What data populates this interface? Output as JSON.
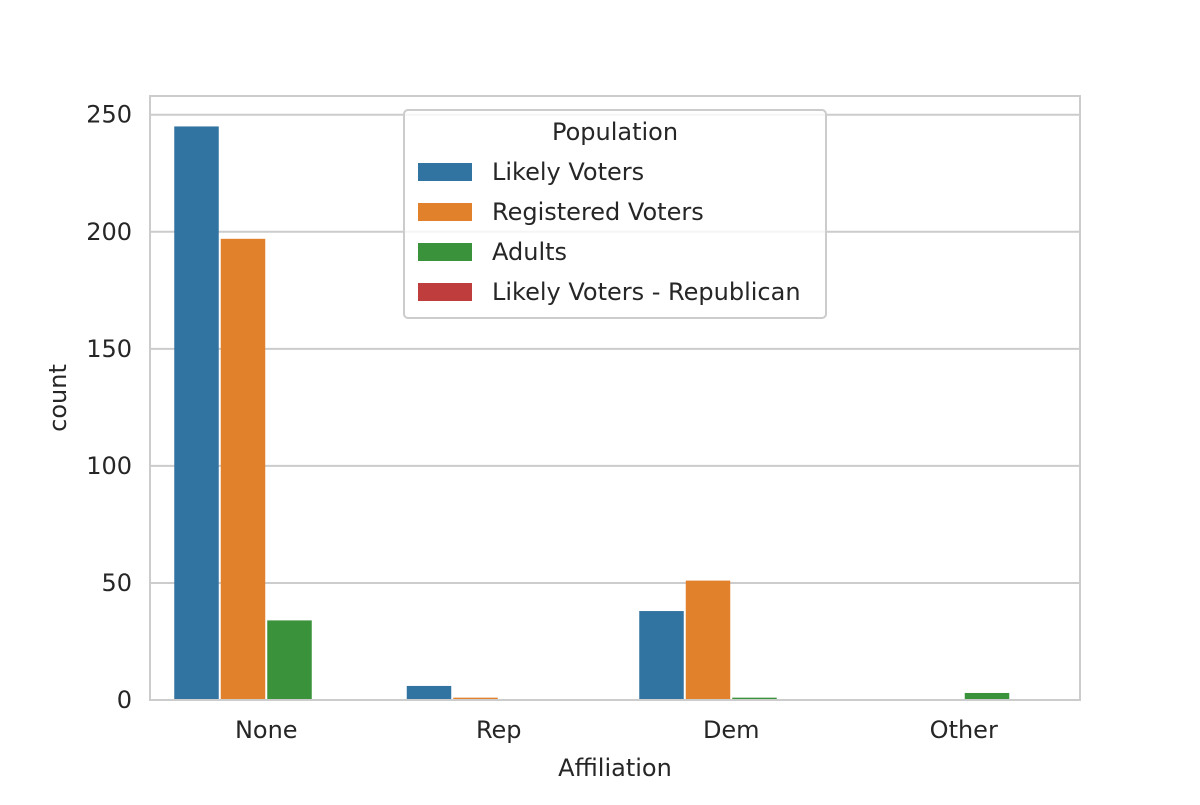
{
  "chart_data": {
    "type": "bar",
    "xlabel": "Affiliation",
    "ylabel": "count",
    "categories": [
      "None",
      "Rep",
      "Dem",
      "Other"
    ],
    "ylim": [
      0,
      258
    ],
    "yticks": [
      0,
      50,
      100,
      150,
      200,
      250
    ],
    "grid": true,
    "legend": {
      "title": "Population",
      "placement": "top-center"
    },
    "series": [
      {
        "name": "Likely Voters",
        "color": "#3274a1",
        "values": [
          245,
          6,
          38,
          0
        ]
      },
      {
        "name": "Registered Voters",
        "color": "#e1812c",
        "values": [
          197,
          1,
          51,
          0
        ]
      },
      {
        "name": "Adults",
        "color": "#3a923a",
        "values": [
          34,
          0,
          1,
          3
        ]
      },
      {
        "name": "Likely Voters - Republican",
        "color": "#c03d3e",
        "values": [
          0,
          0,
          0,
          0
        ]
      }
    ]
  }
}
